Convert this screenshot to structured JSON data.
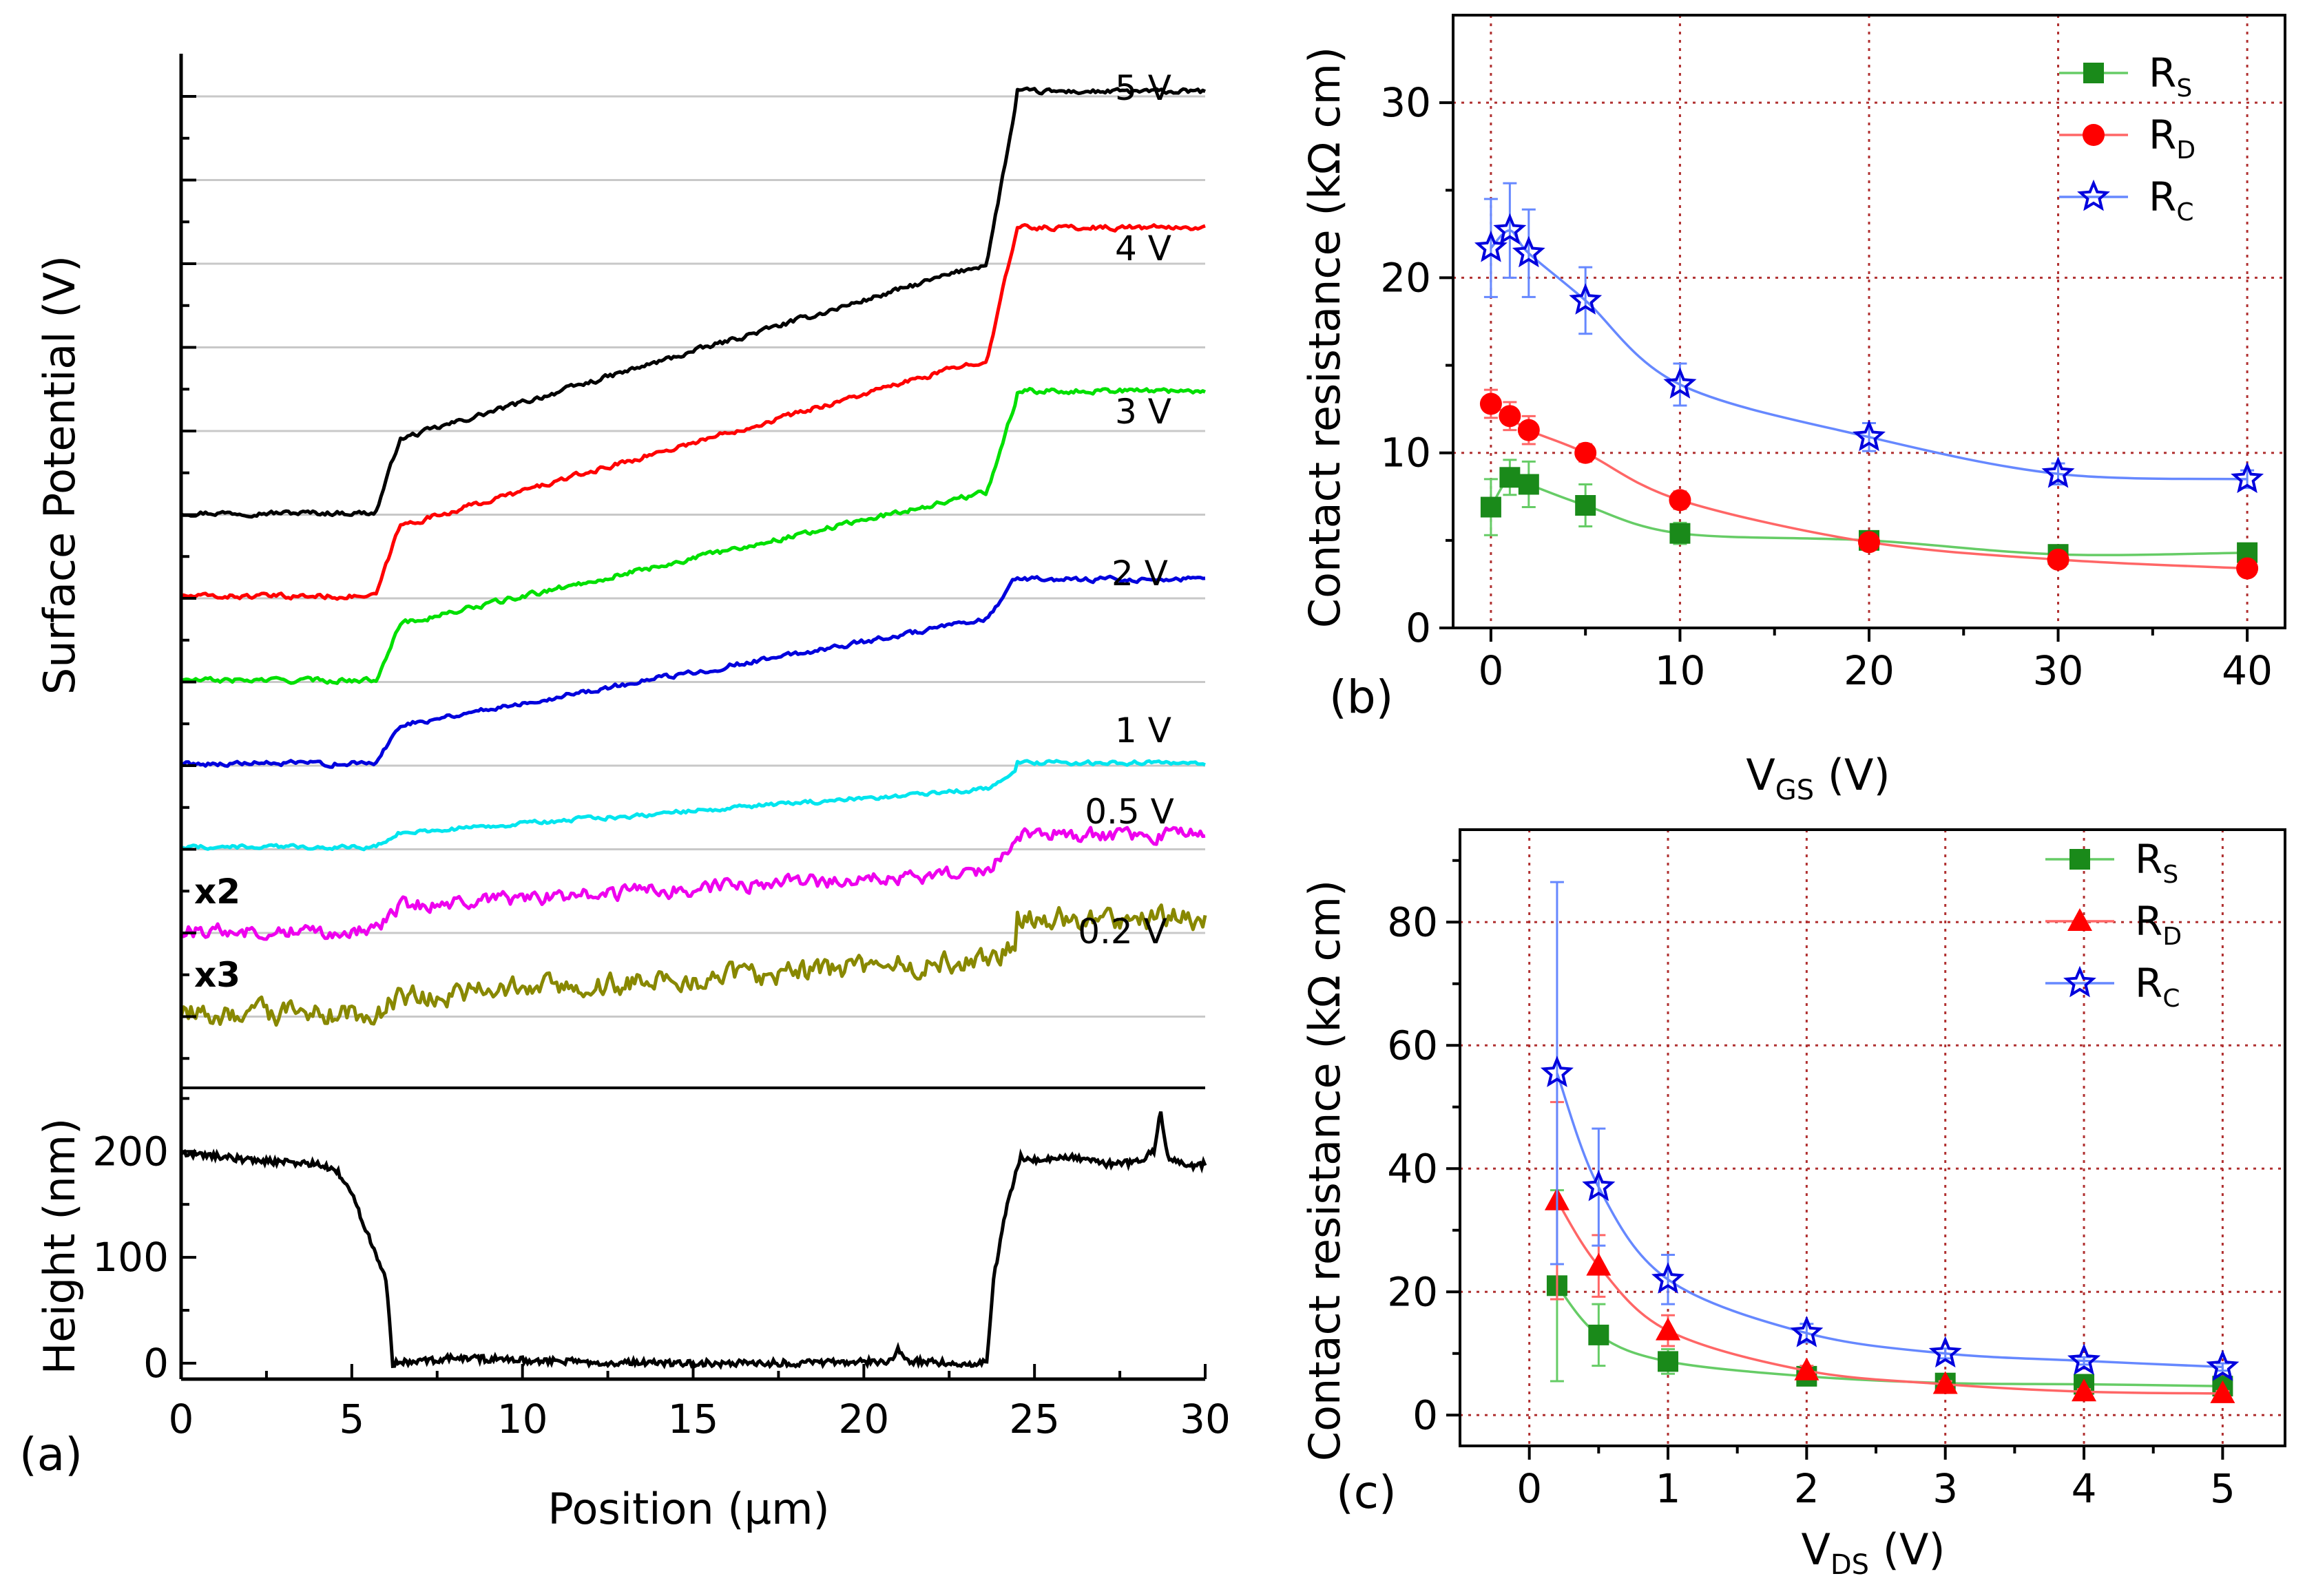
{
  "chart_data": [
    {
      "panel": "a",
      "type": "line",
      "panel_label": "(a)",
      "xlabel": "Position (µm)",
      "ylabel_top": "Surface Potential (V)",
      "ylabel_bottom": "Height (nm)",
      "xlim": [
        0,
        30
      ],
      "x_ticks": [
        0,
        5,
        10,
        15,
        20,
        25,
        30
      ],
      "height_ylim": [
        -15,
        260
      ],
      "height_ticks": [
        0,
        100,
        200
      ],
      "surface_potential_series": [
        {
          "name": "5 V",
          "label": "5 V",
          "color": "#000000",
          "base": 0,
          "step1": 0.42,
          "ramp": 1.0,
          "step2": 0.95,
          "top": 2.4,
          "noise": 0.012
        },
        {
          "name": "4 V",
          "label": "4 V",
          "color": "#ff0000",
          "base": 0,
          "step1": 0.4,
          "ramp": 0.95,
          "step2": 0.75,
          "top": 2.1,
          "noise": 0.012
        },
        {
          "name": "3 V",
          "label": "3 V",
          "color": "#00e000",
          "base": 0,
          "step1": 0.32,
          "ramp": 0.75,
          "step2": 0.55,
          "top": 1.65,
          "noise": 0.012
        },
        {
          "name": "2 V",
          "label": "2 V",
          "color": "#0000dd",
          "base": 0,
          "step1": 0.22,
          "ramp": 0.6,
          "step2": 0.25,
          "top": 1.05,
          "noise": 0.012
        },
        {
          "name": "1 V",
          "label": "1 V",
          "color": "#00e5ee",
          "base": 0,
          "step1": 0.08,
          "ramp": 0.25,
          "step2": 0.1,
          "top": 0.48,
          "noise": 0.01
        },
        {
          "name": "0.5 V",
          "label": "0.5 V",
          "color": "#ee00ee",
          "base": 0,
          "step1": 0.14,
          "ramp": 0.2,
          "step2": 0.18,
          "top": 0.55,
          "noise": 0.035,
          "multiplier": "x2"
        },
        {
          "name": "0.2 V",
          "label": "0.2 V",
          "color": "#888800",
          "base": 0,
          "step1": 0.1,
          "ramp": 0.2,
          "step2": 0.1,
          "top": 0.55,
          "noise": 0.055,
          "multiplier": "x3"
        }
      ],
      "height_profile": {
        "name": "Height",
        "color": "#000000",
        "points": [
          [
            0,
            198
          ],
          [
            1,
            196
          ],
          [
            2,
            192
          ],
          [
            3,
            190
          ],
          [
            4,
            188
          ],
          [
            4.6,
            180
          ],
          [
            5,
            160
          ],
          [
            5.5,
            120
          ],
          [
            6.0,
            80
          ],
          [
            6.2,
            0
          ],
          [
            7,
            2
          ],
          [
            8,
            5
          ],
          [
            10,
            3
          ],
          [
            12,
            1
          ],
          [
            15,
            0
          ],
          [
            18,
            0
          ],
          [
            20.8,
            2
          ],
          [
            21.0,
            16
          ],
          [
            21.2,
            2
          ],
          [
            23.0,
            0
          ],
          [
            23.6,
            0
          ],
          [
            23.8,
            80
          ],
          [
            24.2,
            150
          ],
          [
            24.6,
            195
          ],
          [
            25,
            192
          ],
          [
            26,
            195
          ],
          [
            27,
            188
          ],
          [
            28,
            190
          ],
          [
            28.5,
            200
          ],
          [
            28.7,
            238
          ],
          [
            28.9,
            195
          ],
          [
            29.5,
            186
          ],
          [
            30,
            188
          ]
        ]
      }
    },
    {
      "panel": "b",
      "type": "line",
      "panel_label": "(b)",
      "xlabel": "V",
      "xlabel_sub": "GS",
      "xlabel_unit": " (V)",
      "ylabel": "Contact resistance (kΩ cm)",
      "xlim": [
        -2,
        42
      ],
      "ylim": [
        0,
        35
      ],
      "x_ticks": [
        0,
        10,
        20,
        30,
        40
      ],
      "y_ticks": [
        0,
        10,
        20,
        30
      ],
      "grid": true,
      "x": [
        0,
        1,
        2,
        5,
        10,
        20,
        30,
        40
      ],
      "series": [
        {
          "name": "R",
          "sub": "S",
          "marker": "square",
          "color": "#1a8a1a",
          "line_color": "#66cc66",
          "values": [
            6.9,
            8.6,
            8.2,
            7.0,
            5.4,
            5.0,
            4.2,
            4.3
          ],
          "errors": [
            1.6,
            1.0,
            1.3,
            1.2,
            0.6,
            0.3,
            0.3,
            0.3
          ]
        },
        {
          "name": "R",
          "sub": "D",
          "marker": "circle",
          "color": "#ff0000",
          "line_color": "#ff6666",
          "values": [
            12.8,
            12.1,
            11.3,
            10.0,
            7.3,
            4.9,
            3.9,
            3.4
          ],
          "errors": [
            0.8,
            0.8,
            0.8,
            0.5,
            0.5,
            0.3,
            0.3,
            0.3
          ]
        },
        {
          "name": "R",
          "sub": "C",
          "marker": "star",
          "color": "#0000dd",
          "line_color": "#6688ff",
          "values": [
            21.7,
            22.7,
            21.4,
            18.7,
            13.9,
            10.9,
            8.8,
            8.5
          ],
          "errors": [
            2.8,
            2.7,
            2.5,
            1.9,
            1.2,
            0.8,
            0.6,
            0.5
          ]
        }
      ]
    },
    {
      "panel": "c",
      "type": "line",
      "panel_label": "(c)",
      "xlabel": "V",
      "xlabel_sub": "DS",
      "xlabel_unit": " (V)",
      "ylabel": "Contact resistance (kΩ cm)",
      "xlim": [
        -0.5,
        5.45
      ],
      "ylim": [
        -5,
        95
      ],
      "x_ticks": [
        0,
        1,
        2,
        3,
        4,
        5
      ],
      "y_ticks": [
        0,
        20,
        40,
        60,
        80
      ],
      "grid": true,
      "x": [
        0.2,
        0.5,
        1,
        2,
        3,
        4,
        5
      ],
      "series": [
        {
          "name": "R",
          "sub": "S",
          "marker": "square",
          "color": "#1a8a1a",
          "line_color": "#66cc66",
          "values": [
            21.0,
            13.0,
            8.7,
            6.3,
            5.2,
            5.0,
            4.7
          ],
          "errors": [
            15.5,
            5.0,
            2.0,
            0.8,
            0.5,
            0.4,
            0.4
          ]
        },
        {
          "name": "R",
          "sub": "D",
          "marker": "triangle",
          "color": "#ff0000",
          "line_color": "#ff6666",
          "values": [
            34.8,
            24.2,
            13.7,
            7.2,
            5.0,
            3.8,
            3.5
          ],
          "errors": [
            16.0,
            5.0,
            2.5,
            0.8,
            0.5,
            0.4,
            0.4
          ]
        },
        {
          "name": "R",
          "sub": "C",
          "marker": "star",
          "color": "#0000dd",
          "line_color": "#6688ff",
          "values": [
            55.5,
            37.0,
            22.0,
            13.3,
            10.0,
            8.8,
            7.8
          ],
          "errors": [
            31.0,
            9.5,
            4.0,
            1.5,
            0.8,
            0.6,
            0.6
          ]
        }
      ]
    }
  ]
}
